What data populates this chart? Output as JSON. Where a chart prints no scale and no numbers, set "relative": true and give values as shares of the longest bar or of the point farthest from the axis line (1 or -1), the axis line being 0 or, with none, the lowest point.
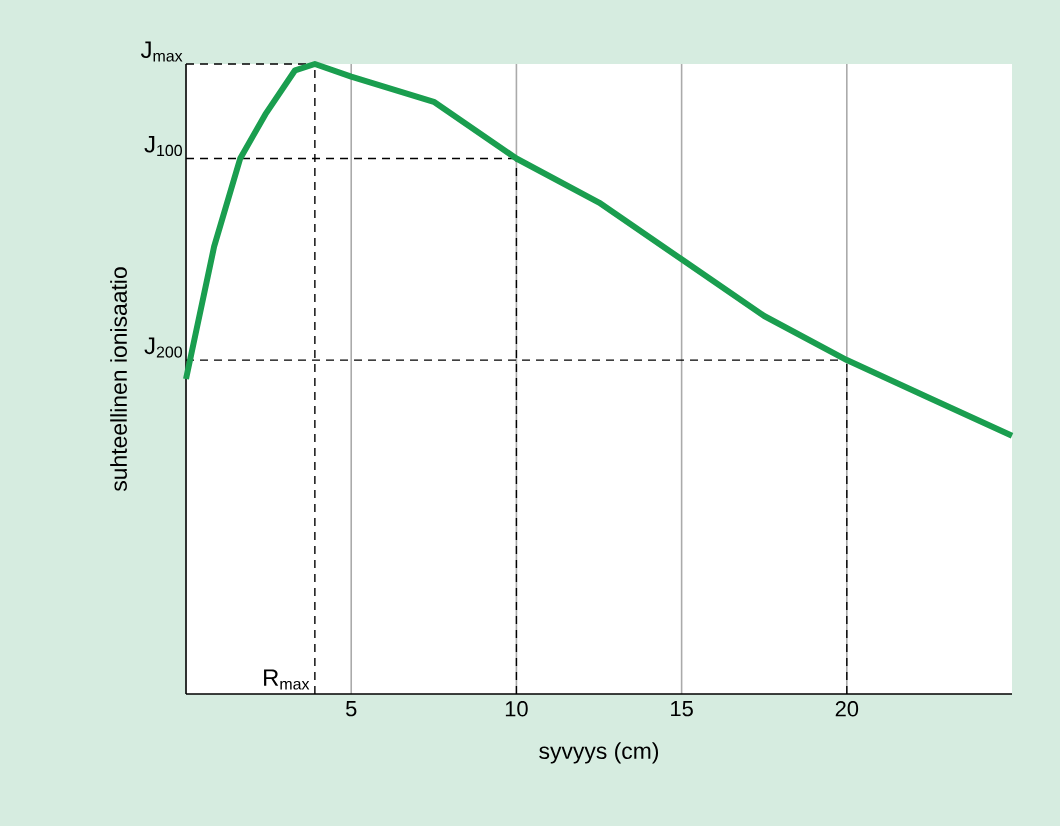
{
  "chart_data": {
    "type": "line",
    "relative": true,
    "xlabel": "syvyys (cm)",
    "ylabel": "suhteellinen ionisaatio",
    "xlim": [
      0,
      25
    ],
    "xticks": [
      5,
      10,
      15,
      20
    ],
    "grid": "x",
    "marker": "none",
    "line_style": "solid",
    "series": [
      {
        "color": "#1a9e4f",
        "x": [
          0,
          0.85,
          1.64,
          2.4,
          3.3,
          3.9,
          5,
          7.5,
          10,
          12.5,
          15,
          17.5,
          20,
          22.5,
          25
        ],
        "values": [
          0.5,
          0.71,
          0.85,
          0.92,
          0.99,
          1.0,
          0.98,
          0.94,
          0.85,
          0.78,
          0.69,
          0.6,
          0.53,
          0.47,
          0.41
        ]
      }
    ],
    "ref_lines": [
      {
        "axis": "y",
        "value": 1.0,
        "label": "J$_{max}$",
        "line_style": "dashed"
      },
      {
        "axis": "y",
        "value": 0.85,
        "label": "J$_{100}$",
        "line_style": "dashed"
      },
      {
        "axis": "y",
        "value": 0.53,
        "label": "J$_{200}$",
        "line_style": "dashed"
      },
      {
        "axis": "x",
        "value": 3.9,
        "label": "R$_{max}$",
        "line_style": "dashed"
      },
      {
        "axis": "x",
        "value": 10,
        "line_style": "dashed"
      },
      {
        "axis": "x",
        "value": 20,
        "line_style": "dashed"
      }
    ]
  }
}
